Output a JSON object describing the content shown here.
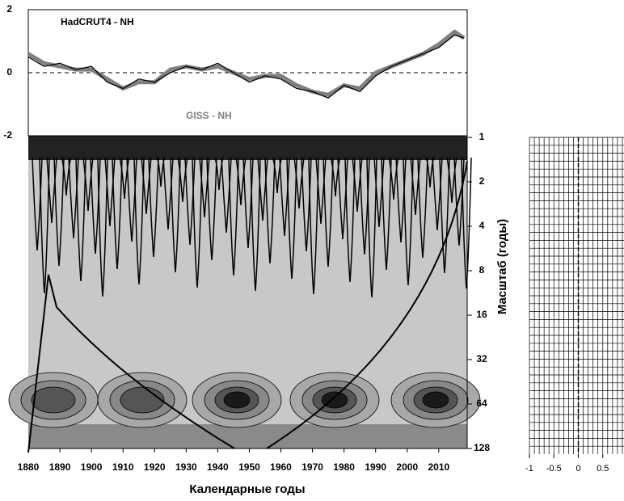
{
  "chart_data": [
    {
      "type": "line",
      "x": [
        1880,
        1885,
        1890,
        1895,
        1900,
        1905,
        1910,
        1915,
        1920,
        1925,
        1930,
        1935,
        1940,
        1945,
        1950,
        1955,
        1960,
        1965,
        1970,
        1975,
        1980,
        1985,
        1990,
        1995,
        2000,
        2005,
        2010,
        2015,
        2018
      ],
      "series": [
        {
          "name": "HadCRUT4 - NH",
          "color": "#000000",
          "values": [
            0.5,
            0.2,
            0.3,
            0.1,
            0.2,
            -0.3,
            -0.5,
            -0.2,
            -0.3,
            0.0,
            0.2,
            0.1,
            0.3,
            0.0,
            -0.3,
            -0.1,
            -0.2,
            -0.5,
            -0.6,
            -0.8,
            -0.4,
            -0.6,
            -0.1,
            0.2,
            0.4,
            0.6,
            0.8,
            1.2,
            1.1
          ]
        },
        {
          "name": "GISS - NH",
          "color": "#808080",
          "values": [
            0.6,
            0.3,
            0.2,
            0.1,
            0.1,
            -0.2,
            -0.5,
            -0.3,
            -0.3,
            0.1,
            0.2,
            0.1,
            0.2,
            0.0,
            -0.2,
            -0.1,
            -0.1,
            -0.4,
            -0.6,
            -0.7,
            -0.4,
            -0.5,
            0.0,
            0.2,
            0.4,
            0.6,
            0.9,
            1.3,
            1.1
          ]
        }
      ],
      "xlim": [
        1880,
        2019
      ],
      "ylim": [
        -2,
        2
      ],
      "yticks": [
        -2,
        0,
        2
      ]
    },
    {
      "type": "wavelet",
      "xlabel": "Календарные годы",
      "ylabel": "Масштаб (годы)",
      "xlim": [
        1880,
        2019
      ],
      "xticks": [
        1880,
        1890,
        1900,
        1910,
        1920,
        1930,
        1940,
        1950,
        1960,
        1970,
        1980,
        1990,
        2000,
        2010
      ],
      "ylim": [
        1,
        128
      ],
      "yticks": [
        1,
        2,
        4,
        8,
        16,
        32,
        64,
        128
      ],
      "log_scale_y": true
    },
    {
      "type": "grid",
      "xlim": [
        -1,
        1
      ],
      "xticks": [
        -1,
        -0.5,
        0,
        0.5
      ]
    }
  ]
}
